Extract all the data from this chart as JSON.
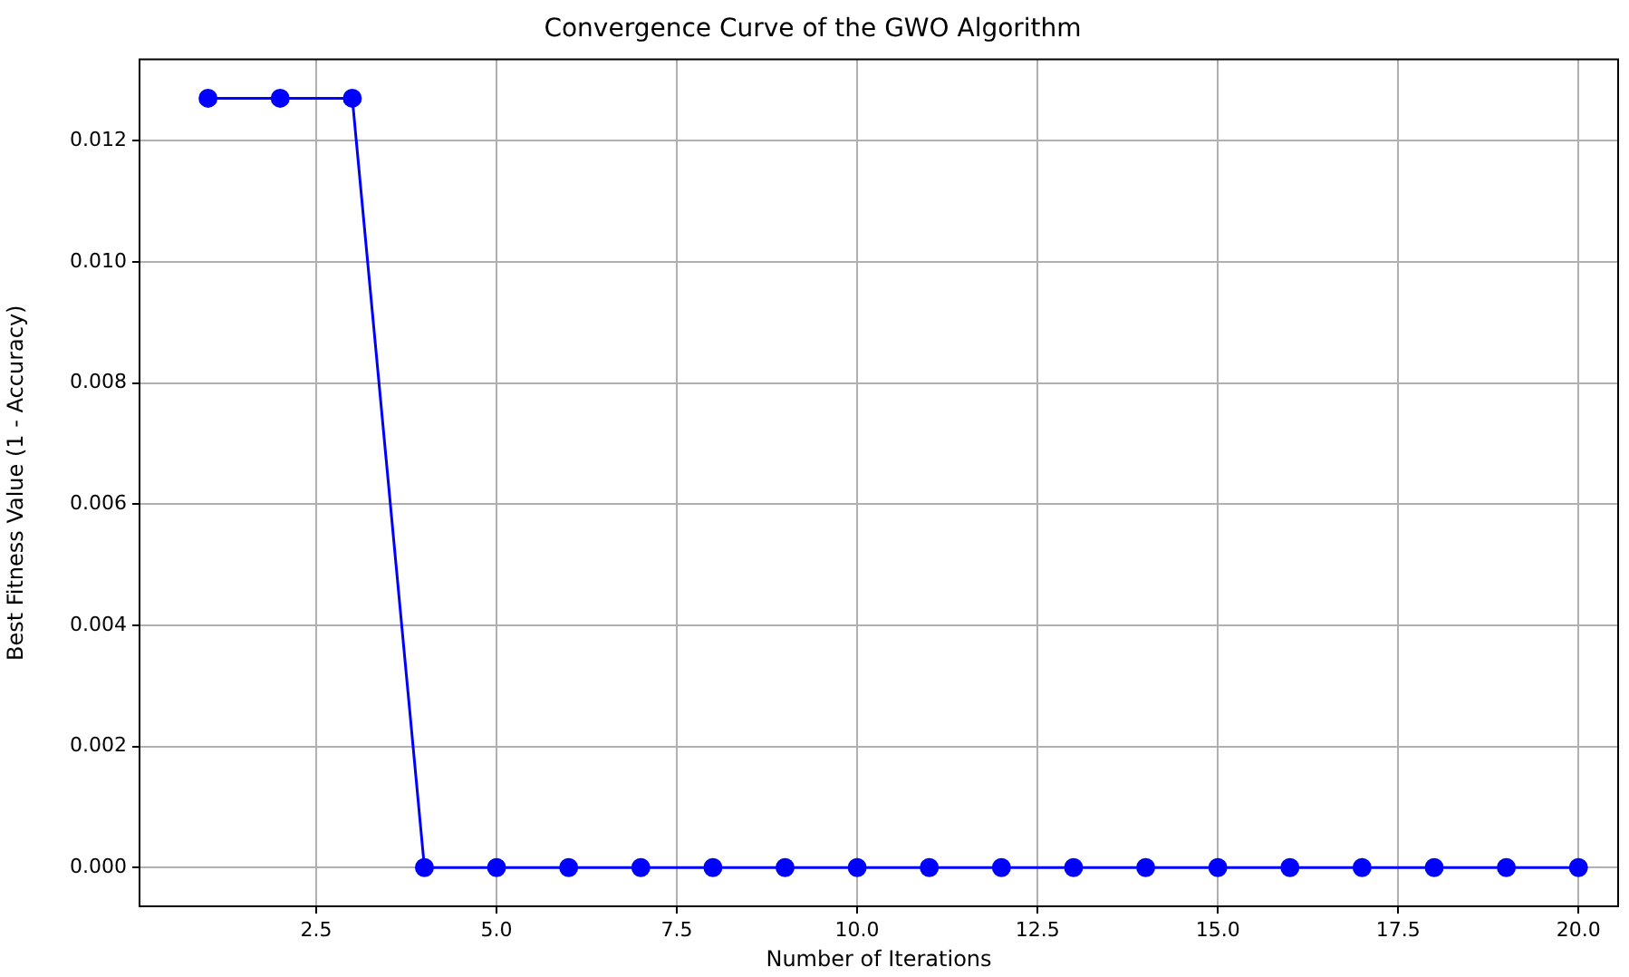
{
  "chart_data": {
    "type": "line",
    "title": "Convergence Curve of the GWO Algorithm",
    "xlabel": "Number of Iterations",
    "ylabel": "Best Fitness Value (1 - Accuracy)",
    "x": [
      1,
      2,
      3,
      4,
      5,
      6,
      7,
      8,
      9,
      10,
      11,
      12,
      13,
      14,
      15,
      16,
      17,
      18,
      19,
      20
    ],
    "series": [
      {
        "color": "#0000ff",
        "values": [
          0.0127,
          0.0127,
          0.0127,
          0,
          0,
          0,
          0,
          0,
          0,
          0,
          0,
          0,
          0,
          0,
          0,
          0,
          0,
          0,
          0,
          0
        ]
      }
    ],
    "xlim": [
      0.05,
      20.55
    ],
    "xticks": [
      {
        "value": 2.5,
        "label": "2.5"
      },
      {
        "value": 5,
        "label": "5.0"
      },
      {
        "value": 7.5,
        "label": "7.5"
      },
      {
        "value": 10,
        "label": "10.0"
      },
      {
        "value": 12.5,
        "label": "12.5"
      },
      {
        "value": 15,
        "label": "15.0"
      },
      {
        "value": 17.5,
        "label": "17.5"
      },
      {
        "value": 20,
        "label": "20.0"
      }
    ],
    "ylim": [
      -0.00064,
      0.01334
    ],
    "yticks": [
      {
        "value": 0,
        "label": "0.000"
      },
      {
        "value": 0.002,
        "label": "0.002"
      },
      {
        "value": 0.004,
        "label": "0.004"
      },
      {
        "value": 0.006,
        "label": "0.006"
      },
      {
        "value": 0.008,
        "label": "0.008"
      },
      {
        "value": 0.01,
        "label": "0.010"
      },
      {
        "value": 0.012,
        "label": "0.012"
      }
    ],
    "grid": true,
    "marker": "circle",
    "line_style": "solid",
    "legend": false
  }
}
